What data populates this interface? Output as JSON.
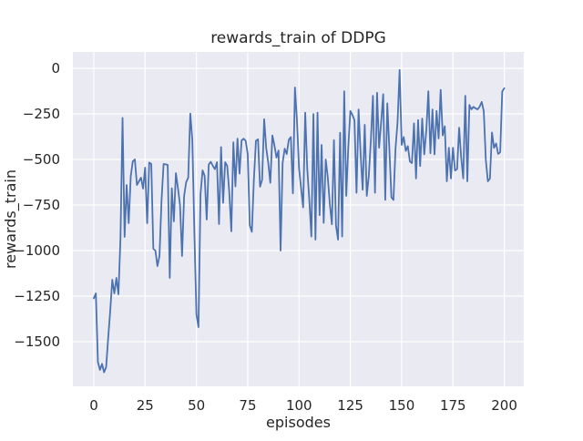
{
  "chart_data": {
    "type": "line",
    "title": "rewards_train of DDPG",
    "xlabel": "episodes",
    "ylabel": "rewards_train",
    "x_ticks": [
      0,
      25,
      50,
      75,
      100,
      125,
      150,
      175,
      200
    ],
    "x_tick_labels": [
      "0",
      "25",
      "50",
      "75",
      "100",
      "125",
      "150",
      "175",
      "200"
    ],
    "y_ticks": [
      0,
      -250,
      -500,
      -750,
      -1000,
      -1250,
      -1500
    ],
    "y_tick_labels": [
      "0",
      "−250",
      "−500",
      "−750",
      "−1000",
      "−1250",
      "−1500"
    ],
    "xlim": [
      -10.2,
      209.5
    ],
    "ylim": [
      -1745,
      90
    ],
    "grid": true,
    "legend": false,
    "colors": {
      "line": "#4c72b0",
      "plot_background": "#eaeaf2",
      "grid": "#ffffff",
      "figure_background": "#ffffff",
      "text": "#262626"
    },
    "series": [
      {
        "name": "rewards_train",
        "x_start": 0,
        "x_step": 1,
        "values": [
          -1262,
          -1235,
          -1612,
          -1655,
          -1622,
          -1668,
          -1640,
          -1480,
          -1330,
          -1160,
          -1235,
          -1150,
          -1240,
          -930,
          -272,
          -925,
          -640,
          -850,
          -592,
          -510,
          -500,
          -640,
          -620,
          -600,
          -660,
          -545,
          -850,
          -517,
          -525,
          -990,
          -1000,
          -1085,
          -1030,
          -725,
          -525,
          -527,
          -530,
          -1150,
          -658,
          -840,
          -575,
          -658,
          -750,
          -1030,
          -700,
          -625,
          -600,
          -248,
          -394,
          -900,
          -1350,
          -1420,
          -690,
          -560,
          -590,
          -830,
          -528,
          -513,
          -535,
          -553,
          -515,
          -855,
          -432,
          -738,
          -515,
          -535,
          -680,
          -894,
          -406,
          -648,
          -386,
          -578,
          -396,
          -386,
          -398,
          -472,
          -862,
          -897,
          -610,
          -398,
          -389,
          -650,
          -612,
          -279,
          -438,
          -519,
          -628,
          -368,
          -422,
          -490,
          -451,
          -1000,
          -519,
          -441,
          -470,
          -392,
          -377,
          -686,
          -105,
          -290,
          -549,
          -659,
          -763,
          -243,
          -553,
          -722,
          -923,
          -251,
          -940,
          -243,
          -806,
          -420,
          -848,
          -500,
          -598,
          -745,
          -856,
          -394,
          -864,
          -940,
          -353,
          -923,
          -126,
          -700,
          -431,
          -234,
          -255,
          -284,
          -683,
          -226,
          -470,
          -666,
          -310,
          -700,
          -588,
          -392,
          -151,
          -683,
          -134,
          -436,
          -294,
          -142,
          -722,
          -192,
          -441,
          -708,
          -722,
          -441,
          -294,
          -9,
          -420,
          -377,
          -453,
          -427,
          -511,
          -520,
          -302,
          -604,
          -284,
          -536,
          -276,
          -472,
          -343,
          -126,
          -466,
          -226,
          -472,
          -234,
          -385,
          -118,
          -368,
          -318,
          -620,
          -436,
          -604,
          -436,
          -561,
          -553,
          -326,
          -490,
          -604,
          -151,
          -620,
          -201,
          -225,
          -211,
          -220,
          -225,
          -210,
          -184,
          -235,
          -503,
          -620,
          -605,
          -352,
          -436,
          -412,
          -470,
          -460,
          -127,
          -109
        ]
      }
    ]
  }
}
